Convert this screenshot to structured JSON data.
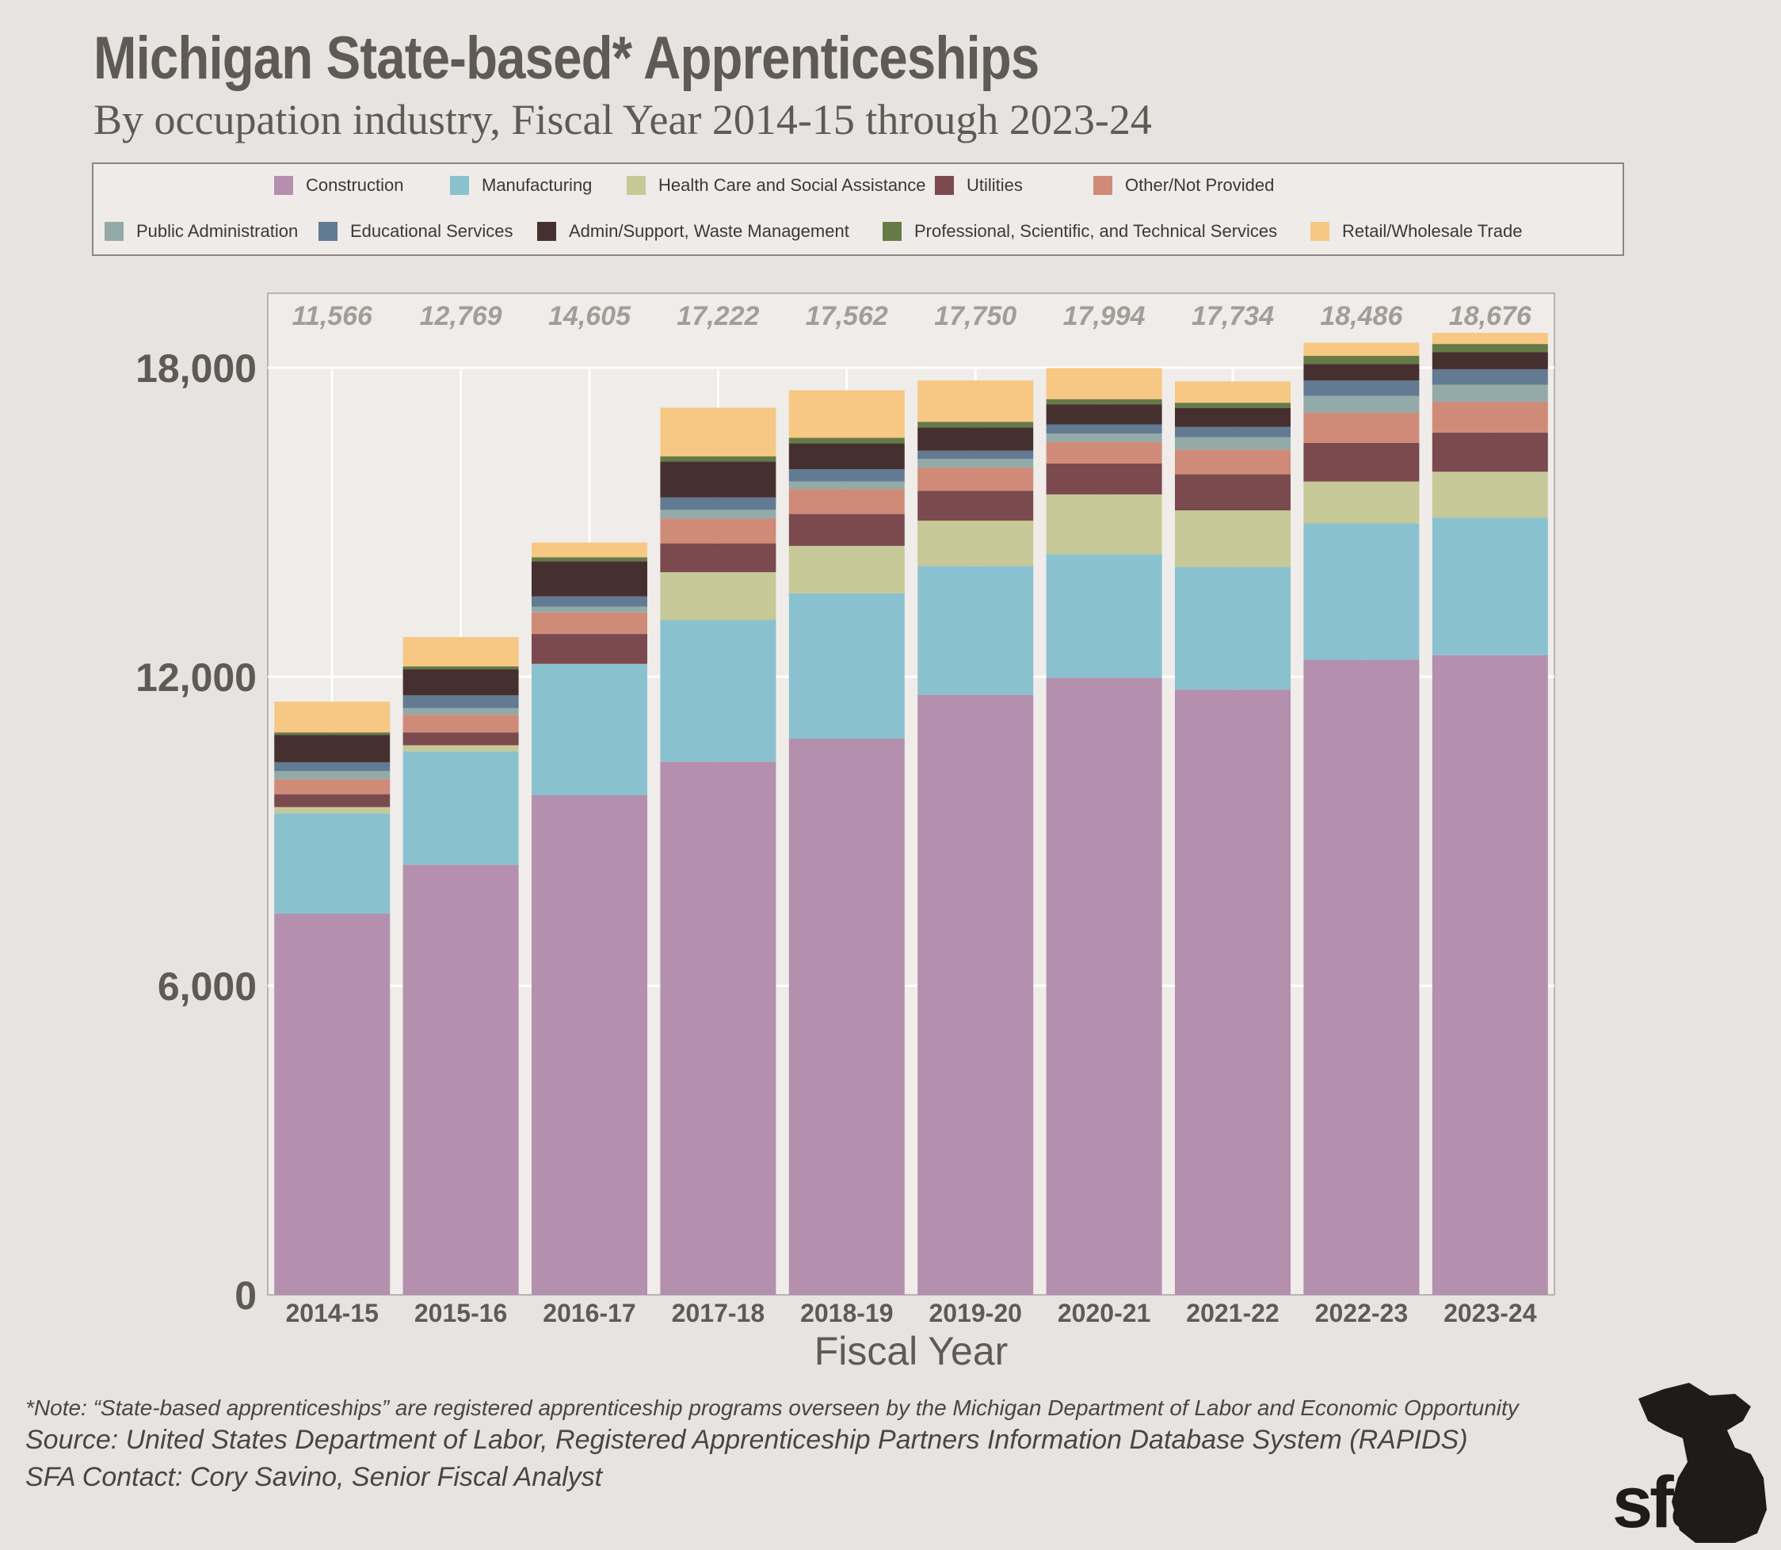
{
  "chart_data": {
    "type": "bar",
    "stacked": true,
    "title": "Michigan State-based* Apprenticeships",
    "subtitle": "By occupation industry, Fiscal Year 2014-15 through 2023-24",
    "xlabel": "Fiscal Year",
    "ylabel": "",
    "ylim": [
      0,
      18500
    ],
    "yticks": [
      0,
      6000,
      12000,
      18000
    ],
    "ytick_labels": [
      "0",
      "6,000",
      "12,000",
      "18,000"
    ],
    "grid": true,
    "legend_position": "top",
    "categories": [
      "2014-15",
      "2015-16",
      "2016-17",
      "2017-18",
      "2018-19",
      "2019-20",
      "2020-21",
      "2021-22",
      "2022-23",
      "2023-24"
    ],
    "totals": [
      11566,
      12769,
      14605,
      17222,
      17562,
      17750,
      17994,
      17734,
      18486,
      18676
    ],
    "total_labels": [
      "11,566",
      "12,769",
      "14,605",
      "17,222",
      "17,562",
      "17,750",
      "17,994",
      "17,734",
      "18,486",
      "18,676"
    ],
    "series": [
      {
        "name": "Construction",
        "color": "#b48fae",
        "values": [
          7400,
          8350,
          9700,
          10350,
          10800,
          11650,
          11980,
          11750,
          12330,
          12420
        ]
      },
      {
        "name": "Manufacturing",
        "color": "#8ac1cf",
        "values": [
          1950,
          2200,
          2550,
          2750,
          2820,
          2500,
          2400,
          2380,
          2650,
          2670
        ]
      },
      {
        "name": "Health Care and Social Assistance",
        "color": "#c7c897",
        "values": [
          120,
          120,
          0,
          930,
          920,
          880,
          1160,
          1100,
          810,
          890
        ]
      },
      {
        "name": "Utilities",
        "color": "#7a4a4e",
        "values": [
          250,
          250,
          580,
          560,
          620,
          580,
          600,
          700,
          750,
          760
        ]
      },
      {
        "name": "Other/Not Provided",
        "color": "#cf8b78",
        "values": [
          290,
          340,
          420,
          480,
          480,
          450,
          420,
          480,
          590,
          600
        ]
      },
      {
        "name": "Public Administration",
        "color": "#93aaa9",
        "values": [
          160,
          130,
          110,
          170,
          150,
          170,
          160,
          240,
          320,
          330
        ]
      },
      {
        "name": "Educational Services",
        "color": "#627a92",
        "values": [
          170,
          250,
          200,
          240,
          240,
          160,
          180,
          200,
          300,
          300
        ]
      },
      {
        "name": "Admin/Support, Waste Management",
        "color": "#46302f",
        "values": [
          530,
          510,
          680,
          700,
          500,
          450,
          390,
          370,
          320,
          330
        ]
      },
      {
        "name": "Professional, Scientific, and Technical Services",
        "color": "#667a48",
        "values": [
          50,
          50,
          80,
          100,
          110,
          110,
          100,
          100,
          160,
          160
        ]
      },
      {
        "name": "Retail/Wholesale Trade",
        "color": "#f7c883",
        "values": [
          596,
          569,
          285,
          942,
          922,
          800,
          604,
          414,
          256,
          216
        ]
      }
    ]
  },
  "notes": {
    "note": "*Note: “State-based apprenticeships” are registered apprenticeship programs overseen by the Michigan Department of Labor and Economic Opportunity",
    "source": "Source: United States Department of Labor, Registered Apprenticeship Partners Information Database System (RAPIDS)",
    "contact": "SFA Contact: Cory Savino, Senior Fiscal Analyst"
  },
  "logo": {
    "text": "sfa"
  }
}
